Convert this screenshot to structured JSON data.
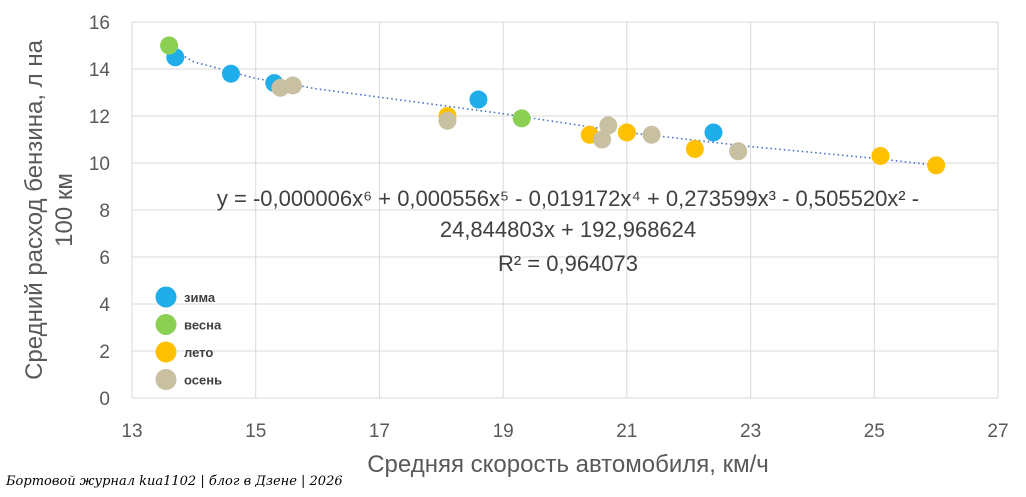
{
  "chart_data": {
    "type": "scatter",
    "title": "",
    "xlabel": "Средняя скорость автомобиля, км/ч",
    "ylabel_line1": "Средний расход бензина, л на",
    "ylabel_line2": "100 км",
    "xlim": [
      13,
      27
    ],
    "ylim": [
      0,
      16
    ],
    "x_ticks": [
      13,
      15,
      17,
      19,
      21,
      23,
      25,
      27
    ],
    "y_ticks": [
      0,
      2,
      4,
      6,
      8,
      10,
      12,
      14,
      16
    ],
    "grid": true,
    "legend_position": "left",
    "series": [
      {
        "name": "зима",
        "color": "#1FAEEA",
        "points": [
          [
            13.7,
            14.5
          ],
          [
            14.6,
            13.8
          ],
          [
            15.3,
            13.4
          ],
          [
            18.6,
            12.7
          ],
          [
            22.4,
            11.3
          ]
        ]
      },
      {
        "name": "весна",
        "color": "#8BD052",
        "points": [
          [
            13.6,
            15.0
          ],
          [
            19.3,
            11.9
          ]
        ]
      },
      {
        "name": "лето",
        "color": "#FFC000",
        "points": [
          [
            18.1,
            12.0
          ],
          [
            20.4,
            11.2
          ],
          [
            21.0,
            11.3
          ],
          [
            22.1,
            10.6
          ],
          [
            25.1,
            10.3
          ],
          [
            26.0,
            9.9
          ]
        ]
      },
      {
        "name": "осень",
        "color": "#C9C0A2",
        "points": [
          [
            15.4,
            13.2
          ],
          [
            15.6,
            13.3
          ],
          [
            18.1,
            11.8
          ],
          [
            20.6,
            11.0
          ],
          [
            20.7,
            11.6
          ],
          [
            21.4,
            11.2
          ],
          [
            22.8,
            10.5
          ]
        ]
      }
    ],
    "trendline": {
      "type": "polynomial",
      "order": 6,
      "color": "#4472C4",
      "equation_line1": "y = -0,000006x⁶ + 0,000556x⁵ - 0,019172x⁴ + 0,273599x³ - 0,505520x² -",
      "equation_line2": "24,844803x + 192,968624",
      "r2_label": "R² = 0,964073",
      "coefficients_high_to_low": [
        -6e-06,
        0.000556,
        -0.019172,
        0.273599,
        -0.50552,
        -24.844803,
        192.968624
      ],
      "points": [
        [
          13.6,
          14.9
        ],
        [
          14,
          14.3
        ],
        [
          15,
          13.6
        ],
        [
          16,
          13.15
        ],
        [
          17,
          12.8
        ],
        [
          18,
          12.45
        ],
        [
          19,
          12.1
        ],
        [
          20,
          11.7
        ],
        [
          21,
          11.3
        ],
        [
          22,
          11.0
        ],
        [
          23,
          10.7
        ],
        [
          24,
          10.45
        ],
        [
          25,
          10.2
        ],
        [
          26,
          9.9
        ]
      ]
    }
  },
  "watermark": "Бортовой журнал kиа1102 | блог в Дзене | 2026"
}
